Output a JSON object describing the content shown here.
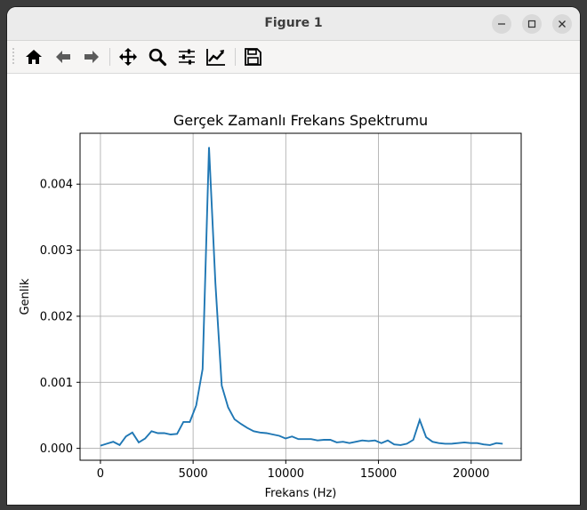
{
  "window": {
    "title": "Figure 1"
  },
  "toolbar": {
    "buttons": [
      {
        "name": "home",
        "icon": "home-icon"
      },
      {
        "name": "back",
        "icon": "arrow-left-icon"
      },
      {
        "name": "forward",
        "icon": "arrow-right-icon"
      },
      {
        "name": "pan",
        "icon": "move-icon"
      },
      {
        "name": "zoom",
        "icon": "magnifier-icon"
      },
      {
        "name": "subplots",
        "icon": "sliders-icon"
      },
      {
        "name": "edit-axes",
        "icon": "line-chart-icon"
      },
      {
        "name": "save",
        "icon": "floppy-disk-icon"
      }
    ]
  },
  "chart_data": {
    "type": "line",
    "title": "Gerçek Zamanlı Frekans Spektrumu",
    "xlabel": "Frekans (Hz)",
    "ylabel": "Genlik",
    "xlim": [
      -1100,
      22700
    ],
    "ylim": [
      -0.00018,
      0.00477
    ],
    "xticks": [
      0,
      5000,
      10000,
      15000,
      20000
    ],
    "xtick_labels": [
      "0",
      "5000",
      "10000",
      "15000",
      "20000"
    ],
    "yticks": [
      0.0,
      0.001,
      0.002,
      0.003,
      0.004
    ],
    "ytick_labels": [
      "0.000",
      "0.001",
      "0.002",
      "0.003",
      "0.004"
    ],
    "grid": true,
    "line_color": "#1f77b4",
    "series": [
      {
        "x": [
          0,
          344,
          689,
          1033,
          1378,
          1722,
          2067,
          2411,
          2756,
          3100,
          3445,
          3789,
          4134,
          4478,
          4823,
          5167,
          5512,
          5856,
          6201,
          6545,
          6890,
          7234,
          7579,
          7923,
          8268,
          8612,
          8957,
          9301,
          9646,
          9990,
          10335,
          10679,
          11024,
          11368,
          11713,
          12057,
          12402,
          12746,
          13091,
          13435,
          13780,
          14124,
          14469,
          14813,
          15158,
          15502,
          15847,
          16191,
          16536,
          16880,
          17225,
          17569,
          17914,
          18258,
          18603,
          18947,
          19292,
          19636,
          19981,
          20325,
          20670,
          21014,
          21359,
          21703
        ],
        "y": [
          4e-05,
          7e-05,
          0.0001,
          5e-05,
          0.00018,
          0.00024,
          9e-05,
          0.00015,
          0.00026,
          0.00023,
          0.00023,
          0.00021,
          0.00022,
          0.0004,
          0.0004,
          0.00065,
          0.0012,
          0.00456,
          0.0025,
          0.00095,
          0.00062,
          0.00044,
          0.00037,
          0.00031,
          0.00026,
          0.00024,
          0.00023,
          0.00021,
          0.00019,
          0.00015,
          0.00018,
          0.00014,
          0.00014,
          0.00014,
          0.00012,
          0.00013,
          0.00013,
          9e-05,
          0.0001,
          8e-05,
          0.0001,
          0.00012,
          0.00011,
          0.00012,
          8e-05,
          0.00012,
          6e-05,
          5e-05,
          7e-05,
          0.00013,
          0.00043,
          0.00017,
          0.0001,
          8e-05,
          7e-05,
          7e-05,
          8e-05,
          9e-05,
          8e-05,
          8e-05,
          6e-05,
          5e-05,
          8e-05,
          7e-05
        ]
      }
    ]
  }
}
